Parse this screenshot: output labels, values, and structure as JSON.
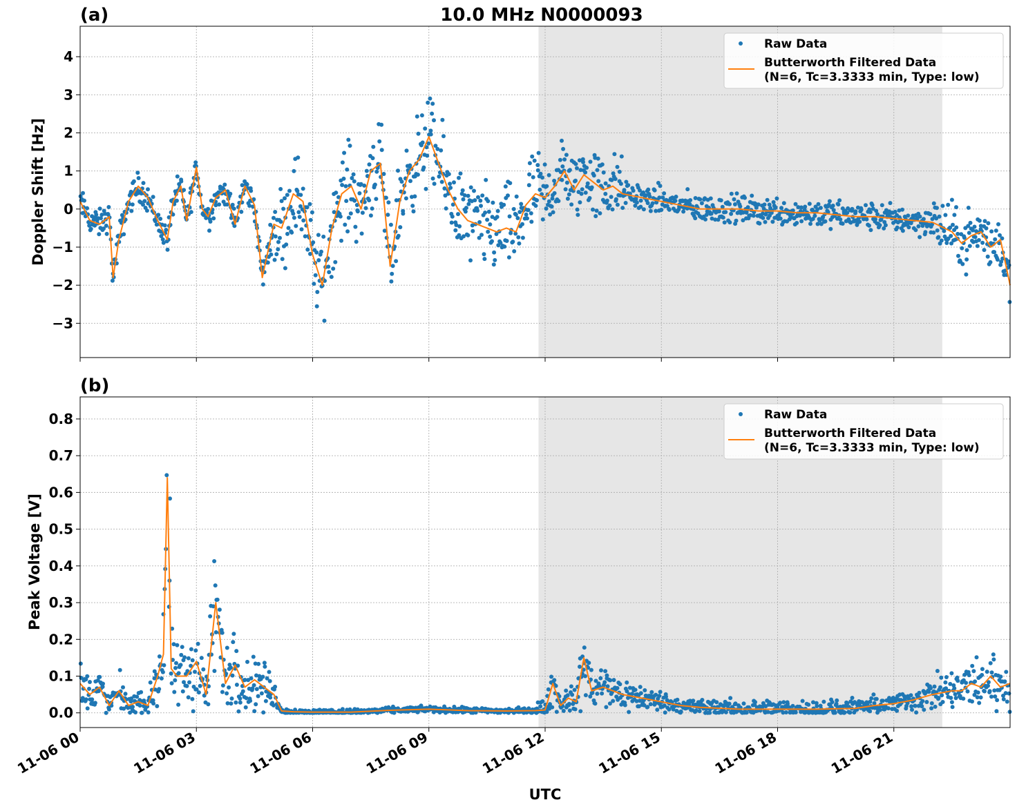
{
  "figure_title": "10.0 MHz N0000093",
  "x_axis": {
    "label": "UTC",
    "range_hours": [
      0,
      24
    ],
    "tick_hours": [
      0,
      3,
      6,
      9,
      12,
      15,
      18,
      21
    ],
    "tick_labels": [
      "11-06 00",
      "11-06 03",
      "11-06 06",
      "11-06 09",
      "11-06 12",
      "11-06 15",
      "11-06 18",
      "11-06 21"
    ]
  },
  "legend": {
    "raw_label": "Raw Data",
    "filtered_label_line1": "Butterworth Filtered Data",
    "filtered_label_line2": "(N=6, Tc=3.3333 min, Type: low)"
  },
  "colors": {
    "raw": "#1f77b4",
    "filtered": "#ff7f0e",
    "shade": "#e6e6e6",
    "grid": "#b0b0b0"
  },
  "chart_data": [
    {
      "type": "scatter",
      "panel_label": "(a)",
      "ylabel": "Doppler Shift [Hz]",
      "ylim": [
        -3.9,
        4.8
      ],
      "yticks": [
        -3,
        -2,
        -1,
        0,
        1,
        2,
        3,
        4
      ],
      "ytick_labels": [
        "−3",
        "−2",
        "−1",
        "0",
        "1",
        "2",
        "3",
        "4"
      ],
      "shaded_region_hours": [
        11.83,
        22.25
      ],
      "grid": true,
      "legend_position": "top-right",
      "series": [
        {
          "name": "Butterworth Filtered Data",
          "kind": "line",
          "x": [
            0.0,
            0.25,
            0.5,
            0.75,
            0.85,
            1.0,
            1.25,
            1.5,
            1.75,
            2.0,
            2.25,
            2.4,
            2.6,
            2.75,
            3.0,
            3.15,
            3.3,
            3.5,
            3.75,
            4.0,
            4.25,
            4.5,
            4.7,
            5.0,
            5.2,
            5.5,
            5.75,
            6.0,
            6.25,
            6.5,
            6.75,
            7.0,
            7.25,
            7.5,
            7.75,
            8.0,
            8.25,
            8.5,
            8.75,
            9.0,
            9.25,
            9.5,
            9.75,
            10.0,
            10.25,
            10.5,
            10.75,
            11.0,
            11.25,
            11.5,
            11.75,
            12.0,
            12.25,
            12.5,
            12.75,
            13.0,
            13.25,
            13.5,
            13.75,
            14.0,
            14.5,
            15.0,
            15.5,
            16.0,
            16.5,
            17.0,
            17.5,
            18.0,
            18.5,
            19.0,
            19.5,
            20.0,
            20.5,
            21.0,
            21.5,
            22.0,
            22.5,
            22.75,
            23.0,
            23.25,
            23.5,
            23.75,
            24.0
          ],
          "y": [
            0.2,
            -0.3,
            -0.4,
            -0.2,
            -1.8,
            -0.8,
            0.2,
            0.6,
            0.3,
            -0.3,
            -0.8,
            0.2,
            0.6,
            -0.3,
            1.1,
            0.0,
            -0.2,
            0.3,
            0.5,
            -0.4,
            0.6,
            0.1,
            -1.8,
            -0.4,
            -0.5,
            0.4,
            0.2,
            -1.2,
            -2.0,
            -0.5,
            0.4,
            0.6,
            0.0,
            1.0,
            1.2,
            -1.5,
            0.2,
            1.0,
            1.3,
            1.9,
            1.2,
            0.5,
            0.0,
            -0.3,
            -0.4,
            -0.5,
            -0.6,
            -0.5,
            -0.6,
            0.1,
            0.4,
            0.3,
            0.6,
            1.0,
            0.5,
            0.9,
            0.7,
            0.5,
            0.6,
            0.4,
            0.3,
            0.2,
            0.1,
            0.0,
            0.0,
            0.0,
            -0.05,
            -0.05,
            -0.1,
            -0.1,
            -0.15,
            -0.2,
            -0.2,
            -0.25,
            -0.3,
            -0.35,
            -0.6,
            -0.9,
            -0.7,
            -0.6,
            -1.0,
            -0.8,
            -2.0
          ]
        }
      ]
    },
    {
      "type": "scatter",
      "panel_label": "(b)",
      "ylabel": "Peak Voltage [V]",
      "ylim": [
        -0.04,
        0.86
      ],
      "yticks": [
        0.0,
        0.1,
        0.2,
        0.3,
        0.4,
        0.5,
        0.6,
        0.7,
        0.8
      ],
      "ytick_labels": [
        "0.0",
        "0.1",
        "0.2",
        "0.3",
        "0.4",
        "0.5",
        "0.6",
        "0.7",
        "0.8"
      ],
      "shaded_region_hours": [
        11.83,
        22.25
      ],
      "grid": true,
      "legend_position": "top-right",
      "series": [
        {
          "name": "Butterworth Filtered Data",
          "kind": "line",
          "x": [
            0.0,
            0.25,
            0.5,
            0.75,
            1.0,
            1.25,
            1.5,
            1.75,
            2.0,
            2.15,
            2.25,
            2.35,
            2.5,
            2.75,
            3.0,
            3.25,
            3.5,
            3.75,
            4.0,
            4.25,
            4.5,
            4.75,
            5.0,
            5.2,
            5.5,
            6.0,
            7.0,
            8.0,
            9.0,
            10.0,
            11.0,
            11.75,
            12.0,
            12.2,
            12.4,
            12.6,
            12.8,
            13.0,
            13.2,
            13.5,
            14.0,
            14.5,
            15.0,
            15.5,
            16.0,
            17.0,
            18.0,
            19.0,
            20.0,
            20.5,
            21.0,
            21.5,
            22.0,
            22.5,
            22.75,
            23.0,
            23.25,
            23.5,
            23.75,
            24.0
          ],
          "y": [
            0.08,
            0.05,
            0.07,
            0.02,
            0.06,
            0.02,
            0.03,
            0.02,
            0.1,
            0.16,
            0.64,
            0.12,
            0.1,
            0.1,
            0.14,
            0.05,
            0.3,
            0.08,
            0.13,
            0.07,
            0.09,
            0.07,
            0.05,
            0.005,
            0.003,
            0.002,
            0.002,
            0.007,
            0.01,
            0.006,
            0.005,
            0.006,
            0.008,
            0.08,
            0.02,
            0.04,
            0.03,
            0.15,
            0.06,
            0.07,
            0.05,
            0.04,
            0.03,
            0.02,
            0.015,
            0.01,
            0.01,
            0.01,
            0.012,
            0.02,
            0.025,
            0.035,
            0.05,
            0.06,
            0.06,
            0.08,
            0.07,
            0.1,
            0.07,
            0.08
          ]
        }
      ]
    }
  ]
}
